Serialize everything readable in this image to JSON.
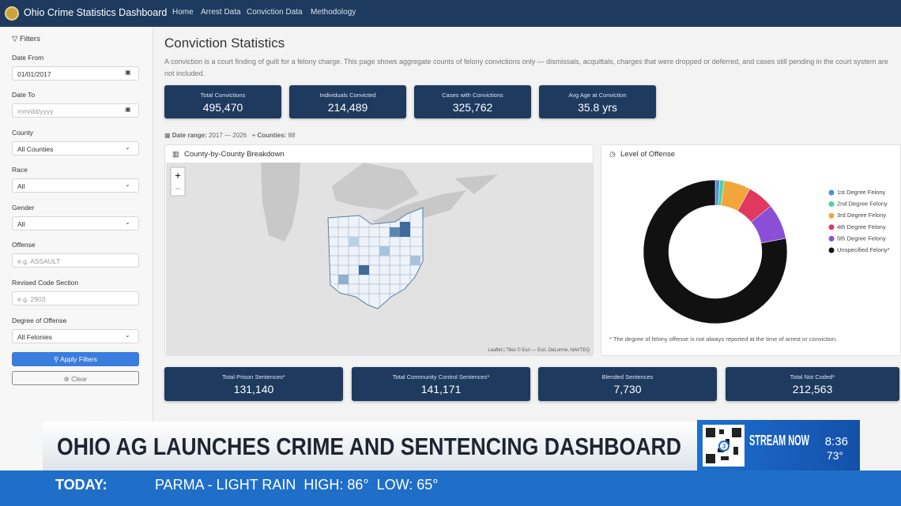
{
  "nav": {
    "brand": "Ohio Crime Statistics Dashboard",
    "links": [
      "Home",
      "Arrest Data",
      "Conviction Data",
      "Methodology"
    ],
    "active": 2
  },
  "filters": {
    "title": "Filters",
    "fields": [
      {
        "label": "Date From",
        "value": "01/01/2017"
      },
      {
        "label": "Date To",
        "placeholder": "mm/dd/yyyy"
      },
      {
        "label": "County",
        "value": "All Counties"
      },
      {
        "label": "Race",
        "value": "All"
      },
      {
        "label": "Gender",
        "value": "All"
      },
      {
        "label": "Offense",
        "placeholder": "e.g. ASSAULT"
      },
      {
        "label": "Revised Code Section",
        "placeholder": "e.g. 2903"
      },
      {
        "label": "Degree of Offense",
        "value": "All Felonies"
      }
    ],
    "apply": "Apply Filters",
    "clear": "Clear"
  },
  "page": {
    "title": "Conviction Statistics",
    "description": "A conviction is a court finding of guilt for a felony charge. This page shows aggregate counts of felony convictions only — dismissals, acquittals, charges that were dropped or deferred, and cases still pending in the court system are not included.",
    "date_range_label": "Date range:",
    "date_range": "2017 — 2026",
    "counties_label": "Counties:",
    "counties": "88"
  },
  "stats": [
    {
      "label": "Total Convictions",
      "value": "495,470"
    },
    {
      "label": "Individuals Convicted",
      "value": "214,489"
    },
    {
      "label": "Cases with Convictions",
      "value": "325,762"
    },
    {
      "label": "Avg Age at Conviction",
      "value": "35.8 yrs"
    }
  ],
  "map": {
    "title": "County-by-County Breakdown",
    "zoom_in": "+",
    "zoom_out": "−",
    "attribution": "Leaflet | Tiles © Esri — Esri, DeLorme, NAVTEQ"
  },
  "chart_data": {
    "type": "pie",
    "donut": true,
    "title": "Level of Offense",
    "categories": [
      "1st Degree Felony",
      "2nd Degree Felony",
      "3rd Degree Felony",
      "4th Degree Felony",
      "5th Degree Felony",
      "Unspecified Felony*"
    ],
    "values": [
      1,
      1,
      6,
      6,
      8,
      78
    ],
    "colors": [
      "#4e8fd9",
      "#4fd1a0",
      "#f0a63a",
      "#e0385f",
      "#8a4fd6",
      "#111111"
    ],
    "footnote": "* The degree of felony offense is not always reported at the time of arrest or conviction."
  },
  "sentences": [
    {
      "label": "Total Prison Sentences*",
      "value": "131,140"
    },
    {
      "label": "Total Community Control Sentences*",
      "value": "141,171"
    },
    {
      "label": "Blended Sentences",
      "value": "7,730"
    },
    {
      "label": "Total Not Coded*",
      "value": "212,563"
    }
  ],
  "broadcast": {
    "headline": "OHIO AG LAUNCHES CRIME AND SENTENCING DASHBOARD",
    "stream": "STREAM NOW",
    "channel": "3",
    "time": "8:36",
    "temp": "73°",
    "today": "TODAY:",
    "weather": "PARMA - LIGHT RAIN  HIGH: 86°  LOW: 65°"
  }
}
